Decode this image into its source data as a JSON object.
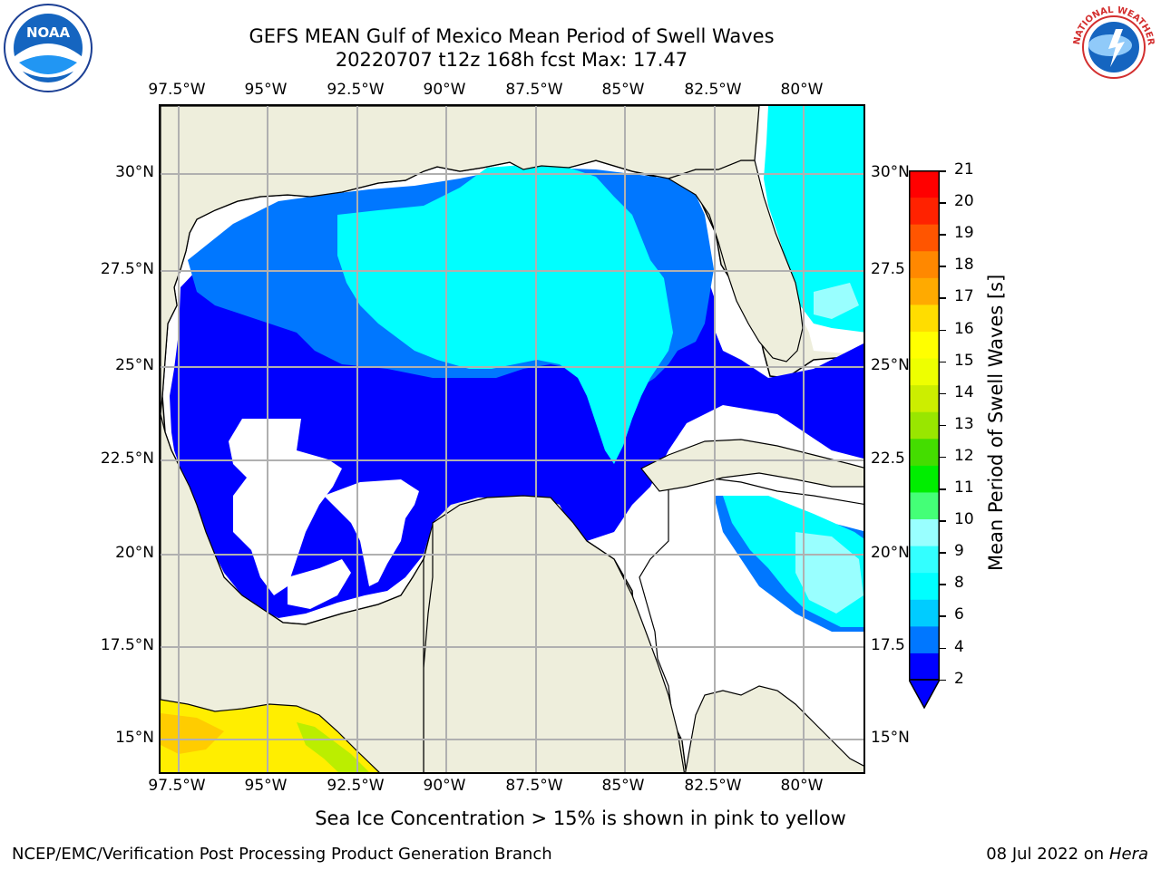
{
  "title_line1": "GEFS MEAN Gulf of Mexico Mean Period of Swell Waves",
  "title_line2": "20220707 t12z 168h fcst   Max: 17.47",
  "lon_ticks": [
    "97.5°W",
    "95°W",
    "92.5°W",
    "90°W",
    "87.5°W",
    "85°W",
    "82.5°W",
    "80°W"
  ],
  "lat_ticks_left": [
    "30°N",
    "27.5°N",
    "25°N",
    "22.5°N",
    "20°N",
    "17.5°N",
    "15°N"
  ],
  "lat_ticks_right": [
    "30°N",
    "27.5",
    "25°N",
    "22.5",
    "20°N",
    "17.5",
    "15°N"
  ],
  "colorbar": {
    "label": "Mean Period of Swell Waves [s]",
    "ticks": [
      "21",
      "20",
      "19",
      "18",
      "17",
      "16",
      "15",
      "14",
      "13",
      "12",
      "11",
      "10",
      "9",
      "8",
      "6",
      "4",
      "2"
    ],
    "colors": [
      "#0000ff",
      "#0077ff",
      "#00ccff",
      "#00ffff",
      "#33ffff",
      "#99ffff",
      "#44ff77",
      "#00ee00",
      "#44dd00",
      "#99e600",
      "#ccee00",
      "#eeff00",
      "#ffff00",
      "#ffdd00",
      "#ffaa00",
      "#ff8800",
      "#ff5500",
      "#ff2200",
      "#ff0000"
    ],
    "extend_color": "#0000ff"
  },
  "colors": {
    "land": "#eeeedc",
    "ocean_mask": "#ffffff",
    "blue": "#0000ff",
    "mid_blue": "#0077ff",
    "cyan": "#00ffff",
    "light_cyan": "#55ffff",
    "pale_cyan": "#99ffff",
    "yellow": "#ffee00",
    "green_yellow": "#bbee00",
    "grid": "#b0b0b0"
  },
  "sea_ice_note": "Sea Ice Concentration > 15% is shown in pink to yellow",
  "footer_left": "NCEP/EMC/Verification Post Processing Product Generation Branch",
  "footer_right_date": "08 Jul 2022 on ",
  "footer_right_host": "Hera",
  "logos": {
    "noaa": "NOAA",
    "nws": "NATIONAL WEATHER SERVICE"
  }
}
